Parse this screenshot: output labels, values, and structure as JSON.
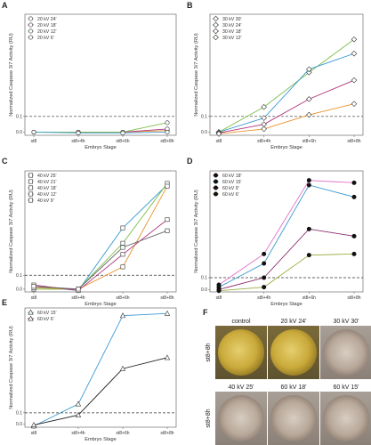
{
  "figure": {
    "panels": [
      {
        "letter": "A",
        "chart_data": {
          "type": "line",
          "categories": [
            "st8",
            "st8+4h",
            "st8+6h",
            "st8+8h"
          ],
          "xlabel": "Embryo Stage",
          "ylabel": "Normalized Caspase 3/7 Activity (RU)",
          "yticks": [
            "0.0",
            "0.1"
          ],
          "ylim": [
            -0.02,
            0.75
          ],
          "threshold": 0.1,
          "marker": "circle-open",
          "legend_position": "top-left",
          "series": [
            {
              "name": "20 kV 24'",
              "color": "#e8922a",
              "values": [
                0.0,
                0.0,
                0.0,
                0.01
              ]
            },
            {
              "name": "20 kV 18'",
              "color": "#b0347c",
              "values": [
                0.0,
                0.0,
                0.0,
                0.02
              ]
            },
            {
              "name": "20 kV 12'",
              "color": "#7cbf4a",
              "values": [
                0.0,
                0.0,
                0.0,
                0.06
              ]
            },
            {
              "name": "20 kV 6'",
              "color": "#3b9bd3",
              "values": [
                0.0,
                -0.005,
                -0.005,
                0.0
              ]
            }
          ]
        }
      },
      {
        "letter": "B",
        "chart_data": {
          "type": "line",
          "categories": [
            "st8",
            "st8+4h",
            "st8+6h",
            "st8+8h"
          ],
          "xlabel": "Embryo Stage",
          "ylabel": "Normalized Caspase 3/7 Activity (RU)",
          "yticks": [
            "0.0",
            "0.1"
          ],
          "ylim": [
            -0.02,
            0.75
          ],
          "threshold": 0.1,
          "marker": "diamond-open",
          "legend_position": "top-left",
          "series": [
            {
              "name": "30 kV 30'",
              "color": "#7cbf4a",
              "values": [
                0.0,
                0.16,
                0.38,
                0.59
              ]
            },
            {
              "name": "30 kV 24'",
              "color": "#3b9bd3",
              "values": [
                0.0,
                0.09,
                0.4,
                0.5
              ]
            },
            {
              "name": "30 kV 18'",
              "color": "#b0347c",
              "values": [
                -0.005,
                0.05,
                0.21,
                0.33
              ]
            },
            {
              "name": "30 kV 12'",
              "color": "#e8922a",
              "values": [
                -0.01,
                0.02,
                0.11,
                0.18
              ]
            }
          ]
        }
      },
      {
        "letter": "C",
        "chart_data": {
          "type": "line",
          "categories": [
            "st8",
            "st8+4h",
            "st8+6h",
            "st8+8h"
          ],
          "xlabel": "Embryo Stage",
          "ylabel": "Normalized Caspase 3/7 Activity (RU)",
          "yticks": [
            "0.0",
            "0.1"
          ],
          "ylim": [
            -0.02,
            0.85
          ],
          "threshold": 0.1,
          "marker": "square-open",
          "legend_position": "top-left",
          "series": [
            {
              "name": "40 kV 25'",
              "color": "#3b9bd3",
              "values": [
                0.02,
                -0.01,
                0.44,
                0.75
              ]
            },
            {
              "name": "40 kV 21'",
              "color": "#7cbf4a",
              "values": [
                0.0,
                0.0,
                0.33,
                0.76
              ]
            },
            {
              "name": "40 kV 18'",
              "color": "#e8922a",
              "values": [
                0.01,
                0.0,
                0.16,
                0.74
              ]
            },
            {
              "name": "40 kV 12'",
              "color": "#b0347c",
              "values": [
                0.03,
                -0.01,
                0.25,
                0.5
              ]
            },
            {
              "name": "40 kV 9'",
              "color": "#666666",
              "values": [
                0.02,
                0.0,
                0.3,
                0.42
              ]
            }
          ]
        }
      },
      {
        "letter": "D",
        "chart_data": {
          "type": "line",
          "categories": [
            "st8",
            "st8+4h",
            "st8+6h",
            "st8+8h"
          ],
          "xlabel": "Embryo Stage",
          "ylabel": "Normalized Caspase 3/7 Activity (RU)",
          "yticks": [
            "0.0",
            "0.1"
          ],
          "ylim": [
            -0.02,
            1.0
          ],
          "threshold": 0.1,
          "marker": "circle-filled",
          "legend_position": "top-left",
          "series": [
            {
              "name": "60 kV 18'",
              "color": "#e070c8",
              "values": [
                0.04,
                0.3,
                0.92,
                0.9
              ]
            },
            {
              "name": "60 kV 15'",
              "color": "#3b9bd3",
              "values": [
                0.02,
                0.22,
                0.88,
                0.78
              ]
            },
            {
              "name": "60 kV 9'",
              "color": "#8a2a6a",
              "values": [
                0.0,
                0.1,
                0.51,
                0.45
              ]
            },
            {
              "name": "60 kV 6'",
              "color": "#9ab040",
              "values": [
                -0.01,
                0.02,
                0.29,
                0.3
              ]
            }
          ]
        }
      },
      {
        "letter": "E",
        "chart_data": {
          "type": "line",
          "categories": [
            "st8",
            "st8+4h",
            "st8+6h",
            "st8+8h"
          ],
          "xlabel": "Embryo Stage",
          "ylabel": "Normalized Caspase 3/7 Activity (RU)",
          "yticks": [
            "0.0",
            "0.1"
          ],
          "ylim": [
            -0.03,
            1.05
          ],
          "threshold": 0.1,
          "marker": "triangle-open",
          "legend_position": "top-left",
          "series": [
            {
              "name": "60 kV 15'",
              "color": "#3b9bd3",
              "values": [
                -0.02,
                0.18,
                0.98,
                1.0
              ]
            },
            {
              "name": "60 kV 6'",
              "color": "#222222",
              "values": [
                -0.01,
                0.08,
                0.5,
                0.6
              ]
            }
          ]
        }
      }
    ],
    "photo_panel": {
      "letter": "F",
      "rows": [
        {
          "label": "st8+8h",
          "cells": [
            {
              "label": "control",
              "tone": "yellow"
            },
            {
              "label": "20 kV 24'",
              "tone": "yellow"
            },
            {
              "label": "30 kV 30'",
              "tone": "gray"
            }
          ]
        },
        {
          "label": "st8+8h",
          "cells": [
            {
              "label": "40 kV 25'",
              "tone": "gray"
            },
            {
              "label": "60 kV 18'",
              "tone": "gray"
            },
            {
              "label": "60 kV 15'",
              "tone": "gray"
            }
          ]
        }
      ]
    }
  }
}
